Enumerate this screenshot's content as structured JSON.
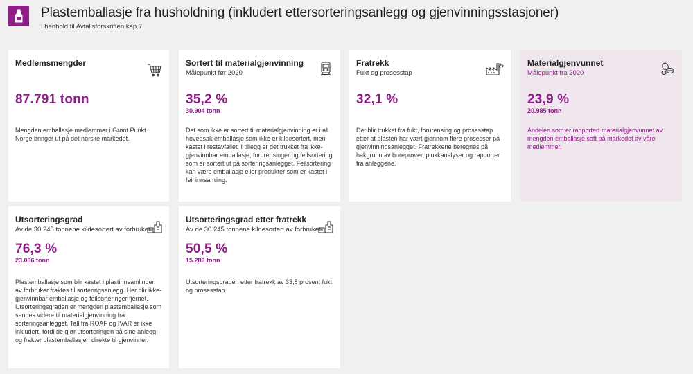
{
  "header": {
    "title": "Plastemballasje fra husholdning (inkludert ettersorteringsanlegg og gjenvinningsstasjoner)",
    "subtitle": "I henhold til Avfallsforskriften kap.7",
    "logo_icon": "plastic-bottle-icon"
  },
  "colors": {
    "accent": "#8e1d86",
    "highlight_bg": "#efe6ee",
    "page_bg": "#f0f0f0"
  },
  "cards": {
    "medlemsmengder": {
      "title": "Medlemsmengder",
      "icon": "shopping-cart-icon",
      "value": "87.791 tonn",
      "desc": "Mengden emballasje medlemmer i Grønt Punkt Norge bringer ut på det norske markedet."
    },
    "sortert": {
      "title": "Sortert til materialgjenvinning",
      "sub": "Målepunkt før 2020",
      "icon": "train-icon",
      "value": "35,2 %",
      "secondary": "30.904 tonn",
      "desc": "Det som ikke er sortert til materialgjenvinning er i all hovedsak emballasje som ikke er kildesortert, men kastet i restavfallet. I tillegg er det trukket fra ikke-gjenvinnbar emballasje, forurensinger og feilsortering som er sortert ut på sorteringsanlegget. Feilsortering kan være emballasje eller produkter som er kastet i feil innsamling."
    },
    "fratrekk": {
      "title": "Fratrekk",
      "sub": "Fukt og prosesstap",
      "icon": "factory-icon",
      "value": "32,1 %",
      "desc": "Det blir trukket fra fukt, forurensing og prosesstap etter at plasten har vært gjennom flere prosesser på gjenvinningsanlegget. Fratrekkene beregnes på bakgrunn av boreprøver, plukkanalyser og rapporter fra anleggene."
    },
    "materialgjenvunnet": {
      "title": "Materialgjenvunnet",
      "sub": "Målepunkt fra 2020",
      "icon": "recycled-pellets-icon",
      "value": "23,9 %",
      "secondary": "20.985 tonn",
      "desc": "Andelen som er rapportert materialgjenvunnet av mengden emballasje satt på markedet av våre medlemmer."
    },
    "utsortering": {
      "title": "Utsorteringsgrad",
      "sub": "Av de 30.245 tonnene kildesortert av forbruker",
      "icon": "sorting-plant-icon",
      "value": "76,3 %",
      "secondary": "23.086 tonn",
      "desc": "Plastemballasje som blir kastet i plastinnsamlingen av forbruker fraktes til sorteringsanlegg. Her blir ikke-gjenvinnbar emballasje og feilsorteringer fjernet. Utsorteringsgraden er mengden plastemballasje som sendes videre til materialgjenvinning fra sorteringsanlegget. Tall fra ROAF og IVAR er ikke inkludert, fordi de gjør utsorteringen på sine anlegg og frakter plastemballasjen direkte til gjenvinner."
    },
    "utsortering_fratrekk": {
      "title": "Utsorteringsgrad etter fratrekk",
      "sub": "Av de 30.245 tonnene kildesortert av forbruker",
      "icon": "sorting-plant-icon",
      "value": "50,5 %",
      "secondary": "15.289 tonn",
      "desc": "Utsorteringsgraden etter fratrekk av 33,8 prosent fukt og prosesstap."
    }
  }
}
